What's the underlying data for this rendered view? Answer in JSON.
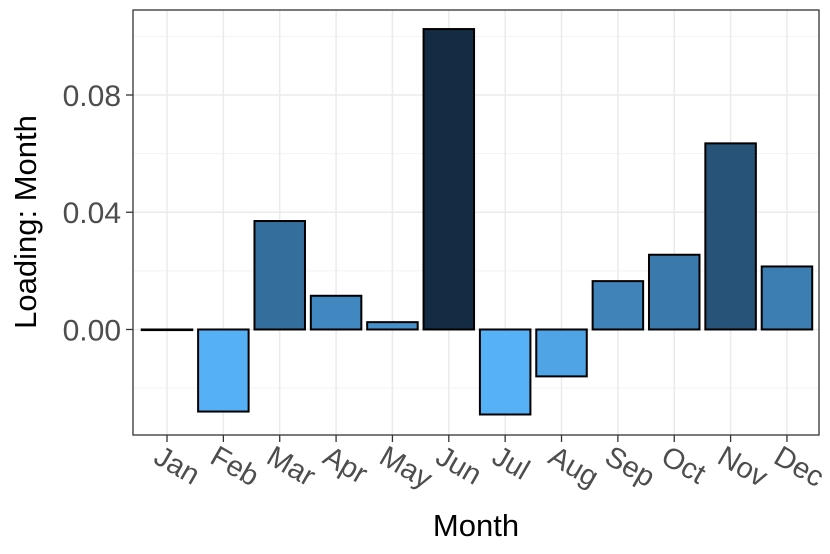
{
  "chart_data": {
    "type": "bar",
    "title": "",
    "xlabel": "Month",
    "ylabel": "Loading: Month",
    "categories": [
      "Jan",
      "Feb",
      "Mar",
      "Apr",
      "May",
      "Jun",
      "Jul",
      "Aug",
      "Sep",
      "Oct",
      "Nov",
      "Dec"
    ],
    "values": [
      0.0,
      -0.028,
      0.037,
      0.0115,
      0.0025,
      0.1025,
      -0.029,
      -0.016,
      0.0165,
      0.0255,
      0.0635,
      0.0215
    ],
    "ylim": [
      -0.036,
      0.109
    ],
    "yticks": [
      0.0,
      0.04,
      0.08
    ],
    "ytick_labels": [
      "0.00",
      "0.04",
      "0.08"
    ],
    "grid": true,
    "legend": "none",
    "color_low": "#56B1F7",
    "color_high": "#132B43",
    "bar_outline": "#000000"
  }
}
